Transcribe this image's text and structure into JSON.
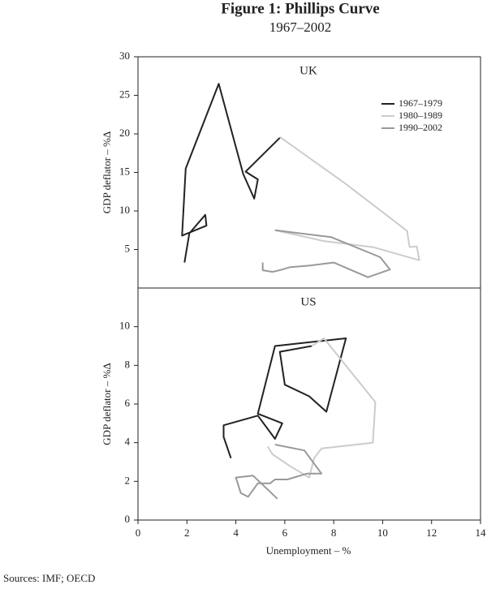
{
  "title": "Figure 1: Phillips Curve",
  "subtitle": "1967–2002",
  "source": "Sources: IMF; OECD",
  "chart_data": [
    {
      "type": "line",
      "panel_title": "UK",
      "ylabel": "GDP deflator – %Δ",
      "ylim": [
        0,
        30
      ],
      "yticks": [
        5,
        10,
        15,
        20,
        25,
        30
      ],
      "legend": "upper right",
      "series": [
        {
          "name": "1967–1979",
          "color": "#222222",
          "x": [
            1.9,
            2.1,
            2.75,
            2.8,
            1.8,
            1.95,
            3.3,
            4.3,
            4.75,
            4.9,
            4.4,
            5.8
          ],
          "values": [
            3.3,
            7.1,
            9.5,
            8.1,
            6.8,
            15.5,
            26.5,
            14.8,
            11.6,
            14.1,
            15.1,
            19.5
          ]
        },
        {
          "name": "1980–1989",
          "color": "#cccccc",
          "x": [
            5.8,
            8.5,
            11.0,
            11.1,
            11.4,
            11.5,
            9.6,
            7.6,
            5.6
          ],
          "values": [
            19.6,
            13.5,
            7.4,
            5.3,
            5.4,
            3.6,
            5.3,
            6.1,
            7.5
          ]
        },
        {
          "name": "1990–2002",
          "color": "#999999",
          "x": [
            5.6,
            7.9,
            9.9,
            10.3,
            9.4,
            8.0,
            7.0,
            6.2,
            5.9,
            5.5,
            5.1,
            5.1
          ],
          "values": [
            7.5,
            6.6,
            4.0,
            2.4,
            1.4,
            3.3,
            2.9,
            2.7,
            2.4,
            2.1,
            2.3,
            3.3
          ]
        }
      ]
    },
    {
      "type": "line",
      "panel_title": "US",
      "ylabel": "GDP deflator – %Δ",
      "xlabel": "Unemployment – %",
      "ylim": [
        0,
        12
      ],
      "yticks": [
        0,
        2,
        4,
        6,
        8,
        10
      ],
      "xlim": [
        0,
        14
      ],
      "xticks": [
        0,
        2,
        4,
        6,
        8,
        10,
        12,
        14
      ],
      "series": [
        {
          "color": "#222222",
          "x": [
            3.8,
            3.5,
            3.5,
            4.9,
            5.6,
            5.9,
            4.9,
            5.6,
            8.5,
            7.7,
            7.0,
            6.0,
            5.8,
            7.1
          ],
          "values": [
            3.2,
            4.3,
            4.9,
            5.4,
            4.2,
            5.0,
            5.5,
            9.0,
            9.4,
            5.6,
            6.4,
            7.0,
            8.7,
            9.0
          ]
        },
        {
          "color": "#cccccc",
          "x": [
            7.1,
            7.6,
            9.7,
            9.6,
            7.5,
            7.2,
            7.0,
            6.2,
            5.5,
            5.3
          ],
          "values": [
            9.0,
            9.4,
            6.1,
            4.0,
            3.7,
            3.2,
            2.2,
            2.8,
            3.4,
            3.8
          ]
        },
        {
          "color": "#999999",
          "x": [
            5.6,
            6.8,
            7.5,
            6.9,
            6.1,
            5.6,
            5.4,
            4.9,
            4.5,
            4.2,
            4.0,
            4.7,
            5.7
          ],
          "values": [
            3.9,
            3.6,
            2.4,
            2.4,
            2.1,
            2.1,
            1.9,
            1.9,
            1.2,
            1.4,
            2.2,
            2.3,
            1.1
          ]
        }
      ]
    }
  ]
}
